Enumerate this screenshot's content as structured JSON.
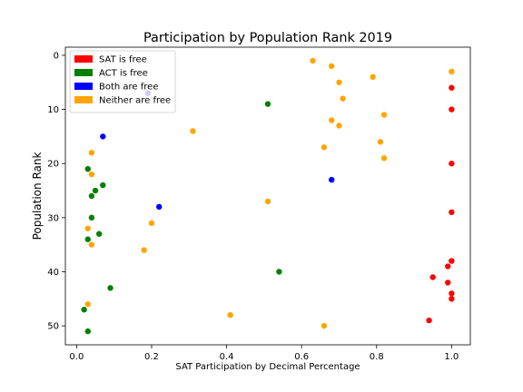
{
  "chart_data": {
    "type": "scatter",
    "title": "Participation by Population Rank 2019",
    "xlabel": "SAT Participation by Decimal Percentage",
    "ylabel": "Population Rank",
    "xlim": [
      -0.03,
      1.05
    ],
    "ylim": [
      53.5,
      -1.5
    ],
    "y_inverted": true,
    "xticks": [
      "0.0",
      "0.2",
      "0.4",
      "0.6",
      "0.8",
      "1.0"
    ],
    "yticks": [
      "0",
      "10",
      "20",
      "30",
      "40",
      "50"
    ],
    "grid": false,
    "legend_position": "top-left",
    "series": [
      {
        "name": "SAT is free",
        "color": "#ff0000",
        "points": [
          [
            1.0,
            6
          ],
          [
            1.0,
            10
          ],
          [
            1.0,
            20
          ],
          [
            1.0,
            29
          ],
          [
            1.0,
            38
          ],
          [
            0.99,
            39
          ],
          [
            0.95,
            41
          ],
          [
            0.99,
            42
          ],
          [
            1.0,
            44
          ],
          [
            1.0,
            45
          ],
          [
            0.94,
            49
          ]
        ]
      },
      {
        "name": "ACT is free",
        "color": "#008000",
        "points": [
          [
            0.51,
            9
          ],
          [
            0.03,
            21
          ],
          [
            0.07,
            24
          ],
          [
            0.05,
            25
          ],
          [
            0.04,
            26
          ],
          [
            0.04,
            30
          ],
          [
            0.06,
            33
          ],
          [
            0.03,
            34
          ],
          [
            0.54,
            40
          ],
          [
            0.09,
            43
          ],
          [
            0.02,
            47
          ],
          [
            0.03,
            51
          ]
        ]
      },
      {
        "name": "Both are free",
        "color": "#0000ff",
        "points": [
          [
            0.19,
            7
          ],
          [
            0.07,
            15
          ],
          [
            0.68,
            23
          ],
          [
            0.22,
            28
          ]
        ]
      },
      {
        "name": "Neither are free",
        "color": "#ffa500",
        "points": [
          [
            0.63,
            1
          ],
          [
            0.68,
            2
          ],
          [
            1.0,
            3
          ],
          [
            0.79,
            4
          ],
          [
            0.7,
            5
          ],
          [
            0.71,
            8
          ],
          [
            0.82,
            11
          ],
          [
            0.68,
            12
          ],
          [
            0.7,
            13
          ],
          [
            0.31,
            14
          ],
          [
            0.81,
            16
          ],
          [
            0.66,
            17
          ],
          [
            0.04,
            18
          ],
          [
            0.82,
            19
          ],
          [
            0.04,
            22
          ],
          [
            0.51,
            27
          ],
          [
            0.2,
            31
          ],
          [
            0.03,
            32
          ],
          [
            0.04,
            35
          ],
          [
            0.18,
            36
          ],
          [
            0.03,
            46
          ],
          [
            0.41,
            48
          ],
          [
            0.66,
            50
          ]
        ]
      }
    ]
  }
}
